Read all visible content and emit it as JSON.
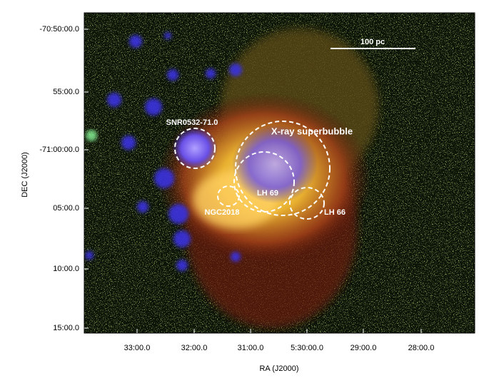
{
  "figure": {
    "axes": {
      "x": {
        "label": "RA (J2000)",
        "ticks": [
          "33:00.0",
          "32:00.0",
          "31:00.0",
          "5:30:00.0",
          "29:00.0",
          "28:00.0"
        ]
      },
      "y": {
        "label": "DEC (J2000)",
        "ticks": [
          "-70:50:00.0",
          "55:00.0",
          "-71:00:00.0",
          "05:00.0",
          "10:00.0",
          "15:00.0"
        ]
      }
    },
    "annotations": [
      "SNR0532-71.0",
      "X-ray superbubble",
      "LH 69",
      "NGC2018",
      "LH 66"
    ],
    "scale_bar": "100 pc"
  }
}
